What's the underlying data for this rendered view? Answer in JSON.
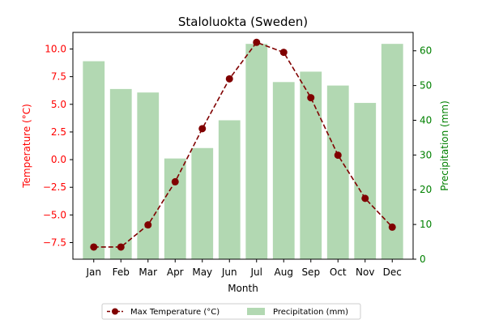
{
  "chart_data": {
    "type": "bar",
    "title": "Staloluokta (Sweden)",
    "xlabel": "Month",
    "ylabel_left": "Temperature (°C)",
    "ylabel_right": "Precipitation (mm)",
    "categories": [
      "Jan",
      "Feb",
      "Mar",
      "Apr",
      "May",
      "Jun",
      "Jul",
      "Aug",
      "Sep",
      "Oct",
      "Nov",
      "Dec"
    ],
    "series": [
      {
        "name": "Max Temperature (°C)",
        "type": "line",
        "axis": "left",
        "values": [
          -7.9,
          -7.9,
          -5.9,
          -2.0,
          2.8,
          7.3,
          10.6,
          9.7,
          5.6,
          0.4,
          -3.5,
          -6.1
        ]
      },
      {
        "name": "Precipitation (mm)",
        "type": "bar",
        "axis": "right",
        "values": [
          57,
          49,
          48,
          29,
          32,
          40,
          62,
          51,
          54,
          50,
          45,
          62
        ]
      }
    ],
    "ylim_left": [
      -9.0,
      11.5
    ],
    "ylim_right": [
      0,
      65.3
    ],
    "yticks_left": [
      "−7.5",
      "−5.0",
      "−2.5",
      "0.0",
      "2.5",
      "5.0",
      "7.5",
      "10.0"
    ],
    "yticks_left_values": [
      -7.5,
      -5.0,
      -2.5,
      0.0,
      2.5,
      5.0,
      7.5,
      10.0
    ],
    "yticks_right": [
      "0",
      "10",
      "20",
      "30",
      "40",
      "50",
      "60"
    ],
    "yticks_right_values": [
      0,
      10,
      20,
      30,
      40,
      50,
      60
    ],
    "grid": false,
    "legend_placement": "bottom-center",
    "colors": {
      "temperature_line": "#800000",
      "precip_bar": "#b2d8b2",
      "left_axis": "#ff0000",
      "right_axis": "#008000",
      "text": "#000000"
    }
  }
}
